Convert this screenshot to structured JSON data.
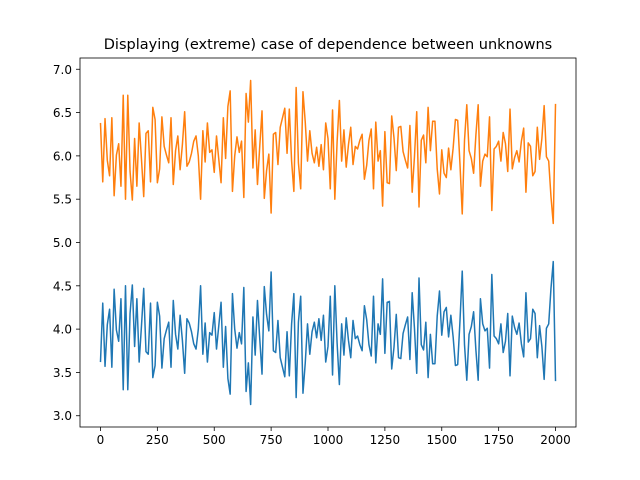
{
  "chart_data": {
    "type": "line",
    "title": "Displaying (extreme) case of dependence between unknowns",
    "xlabel": "",
    "ylabel": "",
    "xlim": [
      -90,
      2090
    ],
    "ylim": [
      2.87,
      7.13
    ],
    "x_ticks": [
      0,
      250,
      500,
      750,
      1000,
      1250,
      1500,
      1750,
      2000
    ],
    "x_tick_labels": [
      "0",
      "250",
      "500",
      "750",
      "1000",
      "1250",
      "1500",
      "1750",
      "2000"
    ],
    "y_ticks": [
      3.0,
      3.5,
      4.0,
      4.5,
      5.0,
      5.5,
      6.0,
      6.5,
      7.0
    ],
    "y_tick_labels": [
      "3.0",
      "3.5",
      "4.0",
      "4.5",
      "5.0",
      "5.5",
      "6.0",
      "6.5",
      "7.0"
    ],
    "grid": false,
    "legend": "none",
    "x_step": 10,
    "series": [
      {
        "color": "#1f77b4",
        "values": [
          3.62,
          4.3,
          3.57,
          4.05,
          4.23,
          3.56,
          4.46,
          3.99,
          3.86,
          4.35,
          3.3,
          4.5,
          3.3,
          4.18,
          4.51,
          3.8,
          4.35,
          3.62,
          4.03,
          4.47,
          3.74,
          3.71,
          4.3,
          3.44,
          3.58,
          4.31,
          4.15,
          3.55,
          3.89,
          3.99,
          4.08,
          3.56,
          4.33,
          3.94,
          3.77,
          4.16,
          3.87,
          3.49,
          4.12,
          4.07,
          3.97,
          3.83,
          3.77,
          4.0,
          4.5,
          3.71,
          4.07,
          3.62,
          3.96,
          3.93,
          4.19,
          3.77,
          4.04,
          4.31,
          3.56,
          4.03,
          3.43,
          3.25,
          4.41,
          4.0,
          3.78,
          3.96,
          3.83,
          4.48,
          3.28,
          3.61,
          3.13,
          4.14,
          3.7,
          4.33,
          3.89,
          3.48,
          4.49,
          4.17,
          3.98,
          4.66,
          3.75,
          3.73,
          4.1,
          3.67,
          3.56,
          3.45,
          3.97,
          3.46,
          4.06,
          4.41,
          3.21,
          4.08,
          4.38,
          3.26,
          3.61,
          4.06,
          3.71,
          3.97,
          4.08,
          3.9,
          4.12,
          3.87,
          4.16,
          3.62,
          3.8,
          4.38,
          3.47,
          4.5,
          3.84,
          3.36,
          4.06,
          3.7,
          4.13,
          3.87,
          3.67,
          4.1,
          3.89,
          3.92,
          3.82,
          3.75,
          4.27,
          4.11,
          3.82,
          3.69,
          4.38,
          3.61,
          4.06,
          3.94,
          4.58,
          3.72,
          4.31,
          4.32,
          3.54,
          3.79,
          4.17,
          3.67,
          3.66,
          3.95,
          4.05,
          4.14,
          3.65,
          4.42,
          4.01,
          3.49,
          4.59,
          3.82,
          3.76,
          4.08,
          3.44,
          3.94,
          3.6,
          3.6,
          4.15,
          4.44,
          3.93,
          4.2,
          4.25,
          3.91,
          4.16,
          3.91,
          3.58,
          3.59,
          4.09,
          4.67,
          3.82,
          3.41,
          3.94,
          4.03,
          4.2,
          3.76,
          3.41,
          4.35,
          4.06,
          3.98,
          4.01,
          3.55,
          4.63,
          3.92,
          3.89,
          3.83,
          4.06,
          3.73,
          3.86,
          4.18,
          3.46,
          4.15,
          4.02,
          3.94,
          4.07,
          3.83,
          3.68,
          4.42,
          3.85,
          3.89,
          4.23,
          4.18,
          3.67,
          4.04,
          3.8,
          3.42,
          4.01,
          4.06,
          4.47,
          4.78,
          3.4
        ]
      },
      {
        "color": "#ff7f0e",
        "values": [
          6.38,
          5.7,
          6.43,
          5.95,
          5.77,
          6.44,
          5.54,
          6.01,
          6.14,
          5.65,
          6.7,
          5.5,
          6.7,
          5.82,
          5.49,
          6.2,
          5.65,
          6.38,
          5.97,
          5.53,
          6.26,
          6.29,
          5.7,
          6.56,
          6.42,
          5.69,
          5.85,
          6.45,
          6.11,
          6.01,
          5.92,
          6.44,
          5.67,
          6.06,
          6.23,
          5.84,
          6.13,
          6.51,
          5.88,
          5.93,
          6.03,
          6.17,
          6.23,
          6.0,
          5.5,
          6.29,
          5.93,
          6.38,
          6.04,
          6.07,
          5.81,
          6.23,
          5.96,
          5.69,
          6.44,
          5.97,
          6.57,
          6.75,
          5.59,
          6.0,
          6.22,
          6.04,
          6.17,
          5.52,
          6.72,
          6.39,
          6.87,
          5.86,
          6.3,
          5.67,
          6.11,
          6.52,
          5.51,
          5.83,
          6.02,
          5.34,
          6.25,
          6.27,
          5.9,
          6.33,
          6.44,
          6.55,
          6.03,
          6.54,
          5.94,
          5.59,
          6.79,
          5.92,
          5.62,
          6.74,
          6.39,
          5.94,
          6.29,
          6.03,
          5.92,
          6.1,
          5.88,
          6.13,
          5.84,
          6.38,
          6.2,
          5.62,
          6.53,
          5.5,
          6.16,
          6.64,
          5.94,
          6.3,
          5.87,
          6.13,
          6.33,
          5.9,
          6.11,
          6.08,
          6.18,
          6.25,
          5.73,
          5.89,
          6.18,
          6.31,
          5.62,
          6.39,
          5.94,
          6.06,
          5.42,
          6.28,
          5.69,
          5.68,
          6.46,
          6.21,
          5.83,
          6.33,
          6.34,
          6.05,
          5.95,
          5.86,
          6.35,
          5.58,
          5.99,
          6.51,
          5.41,
          6.18,
          6.24,
          5.92,
          6.56,
          6.06,
          6.4,
          6.4,
          5.85,
          5.56,
          6.07,
          5.8,
          5.75,
          6.09,
          5.84,
          6.09,
          6.42,
          6.41,
          5.91,
          5.33,
          6.18,
          6.59,
          6.06,
          5.97,
          5.8,
          6.24,
          6.59,
          5.65,
          5.94,
          6.02,
          5.99,
          6.45,
          5.37,
          6.08,
          6.11,
          6.17,
          5.94,
          6.27,
          6.14,
          5.82,
          6.54,
          5.85,
          5.98,
          6.06,
          5.93,
          6.17,
          6.32,
          5.58,
          6.15,
          6.11,
          5.77,
          5.82,
          6.33,
          5.96,
          6.2,
          6.58,
          5.99,
          5.94,
          5.53,
          5.22,
          6.6
        ]
      }
    ]
  }
}
